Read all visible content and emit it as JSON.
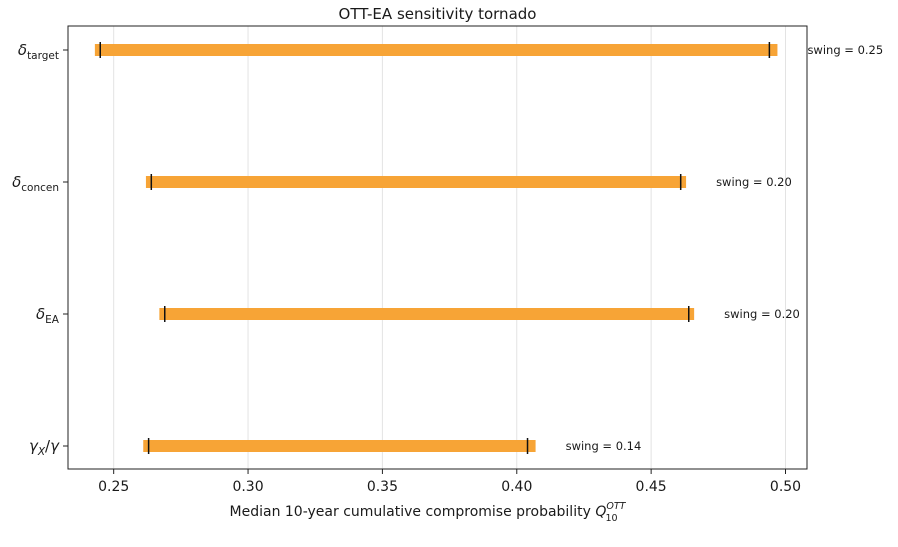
{
  "chart_data": {
    "type": "bar",
    "orientation": "horizontal",
    "title": "OTT-EA sensitivity tornado",
    "xlabel": "Median 10-year cumulative compromise probability",
    "xlabel_symbol": "Q",
    "xlabel_sub": "10",
    "xlabel_sup": "OTT",
    "xlim": [
      0.233,
      0.508
    ],
    "xticks": [
      "0.25",
      "0.30",
      "0.35",
      "0.40",
      "0.45",
      "0.50"
    ],
    "grid": "vertical",
    "bar_color": "#f7a436",
    "parameters": [
      {
        "symbol": "δ",
        "sub": "target",
        "bar_low": 0.243,
        "bar_high": 0.497,
        "mark_low": 0.245,
        "mark_high": 0.494,
        "swing_label": "swing = 0.25"
      },
      {
        "symbol": "δ",
        "sub": "concen",
        "bar_low": 0.262,
        "bar_high": 0.463,
        "mark_low": 0.264,
        "mark_high": 0.461,
        "swing_label": "swing = 0.20"
      },
      {
        "symbol": "δ",
        "sub": "EA",
        "bar_low": 0.267,
        "bar_high": 0.466,
        "mark_low": 0.269,
        "mark_high": 0.464,
        "swing_label": "swing = 0.20"
      },
      {
        "symbol": "γX/γ",
        "sub": "",
        "bar_low": 0.261,
        "bar_high": 0.407,
        "mark_low": 0.263,
        "mark_high": 0.404,
        "swing_label": "swing = 0.14"
      }
    ]
  }
}
